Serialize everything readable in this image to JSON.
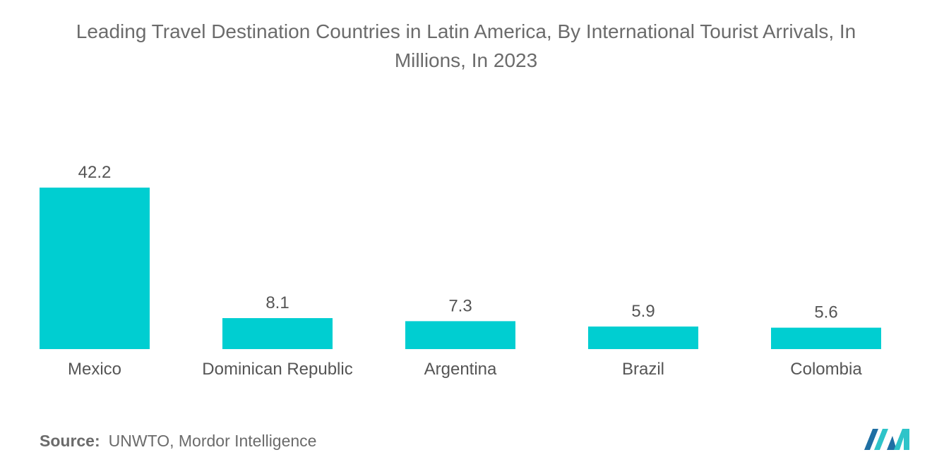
{
  "chart_data": {
    "type": "bar",
    "title_lines": [
      "Leading Travel Destination Countries in Latin America, By International Tourist Arrivals, In",
      "Millions, In 2023"
    ],
    "categories": [
      "Mexico",
      "Dominican Republic",
      "Argentina",
      "Brazil",
      "Colombia"
    ],
    "values": [
      42.2,
      8.1,
      7.3,
      5.9,
      5.6
    ],
    "value_labels": [
      "42.2",
      "8.1",
      "7.3",
      "5.9",
      "5.6"
    ],
    "xlabel": "",
    "ylabel": "",
    "ylim": [
      0,
      42.2
    ],
    "grid": false,
    "legend": "none",
    "bar_color": "#00CED1"
  },
  "source": {
    "label": "Source:",
    "text": "UNWTO, Mordor Intelligence"
  },
  "logo": {
    "icon": "mordor-intelligence-logo-icon",
    "colors": [
      "#1f6fa3",
      "#2ec4c9"
    ]
  }
}
